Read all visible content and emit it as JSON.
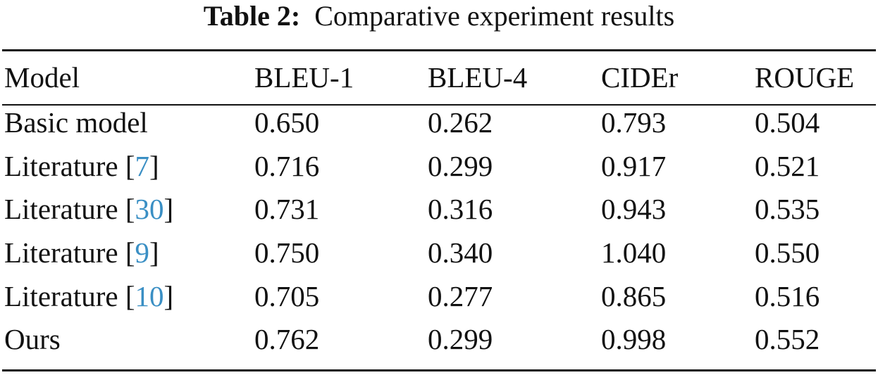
{
  "caption": {
    "label": "Table 2:",
    "text": "Comparative experiment results"
  },
  "table": {
    "columns": [
      "Model",
      "BLEU-1",
      "BLEU-4",
      "CIDEr",
      "ROUGE"
    ],
    "rows": [
      {
        "model": "Basic model",
        "ref": "",
        "bleu1": "0.650",
        "bleu4": "0.262",
        "cider": "0.793",
        "rouge": "0.504"
      },
      {
        "model": "Literature [",
        "ref": "7",
        "bleu1": "0.716",
        "bleu4": "0.299",
        "cider": "0.917",
        "rouge": "0.521"
      },
      {
        "model": "Literature [",
        "ref": "30",
        "bleu1": "0.731",
        "bleu4": "0.316",
        "cider": "0.943",
        "rouge": "0.535"
      },
      {
        "model": "Literature [",
        "ref": "9",
        "bleu1": "0.750",
        "bleu4": "0.340",
        "cider": "1.040",
        "rouge": "0.550"
      },
      {
        "model": "Literature [",
        "ref": "10",
        "bleu1": "0.705",
        "bleu4": "0.277",
        "cider": "0.865",
        "rouge": "0.516"
      },
      {
        "model": "Ours",
        "ref": "",
        "bleu1": "0.762",
        "bleu4": "0.299",
        "cider": "0.998",
        "rouge": "0.552"
      }
    ]
  },
  "colors": {
    "text": "#111111",
    "citation_link": "#3a8fc4"
  }
}
